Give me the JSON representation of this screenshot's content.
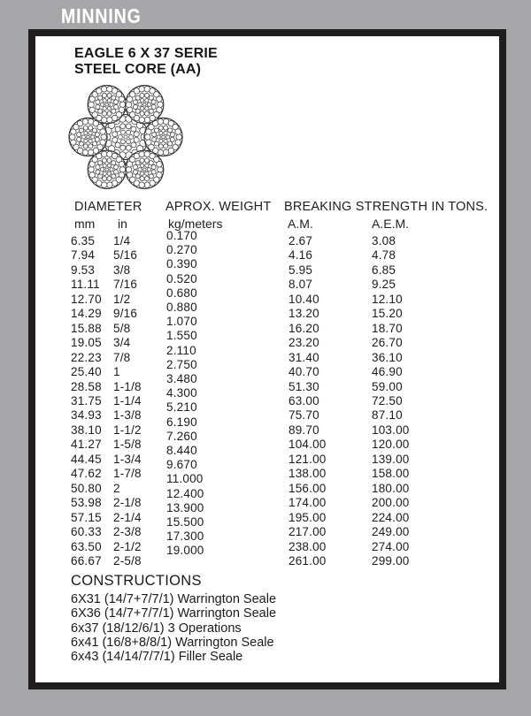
{
  "banner": {
    "label": "MINNING"
  },
  "document": {
    "title_line1": "EAGLE 6 X 37 SERIE",
    "title_line2": "STEEL CORE (AA)"
  },
  "icons": {
    "rope_diagram": "wire-rope-cross-section"
  },
  "table": {
    "headers": {
      "diameter": "DIAMETER",
      "weight": "APROX. WEIGHT",
      "breaking": "BREAKING STRENGTH IN TONS."
    },
    "subheaders": {
      "mm": "mm",
      "in": "in",
      "kg": "kg/meters",
      "am": "A.M.",
      "aem": "A.E.M."
    },
    "columns": {
      "mm": [
        "6.35",
        "7.94",
        "9.53",
        "11.11",
        "12.70",
        "14.29",
        "15.88",
        "19.05",
        "22.23",
        "25.40",
        "28.58",
        "31.75",
        "34.93",
        "38.10",
        "41.27",
        "44.45",
        "47.62",
        "50.80",
        "53.98",
        "57.15",
        "60.33",
        "63.50",
        "66.67"
      ],
      "in": [
        "1/4",
        "5/16",
        "3/8",
        "7/16",
        "1/2",
        "9/16",
        "5/8",
        "3/4",
        "7/8",
        "1",
        "1-1/8",
        "1-1/4",
        "1-3/8",
        "1-1/2",
        "1-5/8",
        "1-3/4",
        "1-7/8",
        "2",
        "2-1/8",
        "2-1/4",
        "2-3/8",
        "2-1/2",
        "2-5/8"
      ],
      "kg": [
        "0.170",
        "0.270",
        "0.390",
        "0.520",
        "0.680",
        "0.880",
        "1.070",
        "1.550",
        "2.110",
        "2.750",
        "3.480",
        "4.300",
        "5.210",
        "6.190",
        "7.260",
        "8.440",
        "9.670",
        "11.000",
        "12.400",
        "13.900",
        "15.500",
        "17.300",
        "19.000"
      ],
      "am": [
        "2.67",
        "4.16",
        "5.95",
        "8.07",
        "10.40",
        "13.20",
        "16.20",
        "23.20",
        "31.40",
        "40.70",
        "51.30",
        "63.00",
        "75.70",
        "89.70",
        "104.00",
        "121.00",
        "138.00",
        "156.00",
        "174.00",
        "195.00",
        "217.00",
        "238.00",
        "261.00"
      ],
      "aem": [
        "3.08",
        "4.78",
        "6.85",
        "9.25",
        "12.10",
        "15.20",
        "18.70",
        "26.70",
        "36.10",
        "46.90",
        "59.00",
        "72.50",
        "87.10",
        "103.00",
        "120.00",
        "139.00",
        "158.00",
        "180.00",
        "200.00",
        "224.00",
        "249.00",
        "274.00",
        "299.00"
      ]
    }
  },
  "constructions": {
    "title": "CONSTRUCTIONS",
    "items": [
      "6X31 (14/7+7/7/1) Warrington Seale",
      "6X36 (14/7+7/7/1) Warrington Seale",
      "6x37 (18/12/6/1) 3 Operations",
      "6x41 (16/8+8/8/1) Warrington Seale",
      "6x43 (14/14/7/7/1) Filler Seale"
    ]
  },
  "colors": {
    "background": "#a6a6a9",
    "sheet_border": "#201d1e",
    "sheet_background": "#ffffff",
    "banner_text": "#ffffff",
    "text": "#1b1b1b"
  }
}
